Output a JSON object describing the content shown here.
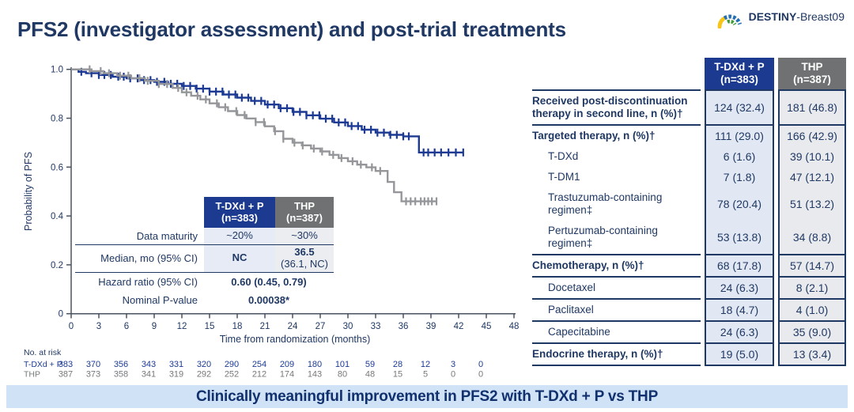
{
  "slide": {
    "title": "PFS2 (investigator assessment) and post-trial treatments",
    "logo": {
      "brand_bold": "DESTINY",
      "brand_rest": "-Breast09"
    },
    "banner": "Clinically meaningful improvement in PFS2 with T-DXd + P vs THP"
  },
  "colors": {
    "navy_text": "#1f3864",
    "curve_blue": "#1c3a94",
    "curve_gray": "#949699",
    "header_blue": "#1c3b90",
    "header_gray": "#6f7173",
    "banner_bg": "#cfe2f6",
    "axis": "#4a5360",
    "risk_gray": "#75787b"
  },
  "chart_data": {
    "type": "line",
    "subtype": "kaplan-meier-step",
    "title": "",
    "xlabel": "Time from randomization (months)",
    "ylabel": "Probability of PFS",
    "xlim": [
      0,
      48
    ],
    "ylim": [
      0,
      1.0
    ],
    "xticks": [
      0,
      3,
      6,
      9,
      12,
      15,
      18,
      21,
      24,
      27,
      30,
      33,
      36,
      39,
      42,
      45,
      48
    ],
    "yticks": [
      0,
      0.2,
      0.4,
      0.6,
      0.8,
      1.0
    ],
    "grid": false,
    "series": [
      {
        "name": "T-DXd + P",
        "color": "#1c3a94",
        "steps": [
          [
            0,
            1.0
          ],
          [
            0.8,
            0.99
          ],
          [
            1.6,
            0.984
          ],
          [
            3,
            0.977
          ],
          [
            4.5,
            0.97
          ],
          [
            6,
            0.963
          ],
          [
            7.5,
            0.956
          ],
          [
            9,
            0.949
          ],
          [
            10.5,
            0.941
          ],
          [
            12,
            0.932
          ],
          [
            13.5,
            0.921
          ],
          [
            15,
            0.909
          ],
          [
            16.5,
            0.897
          ],
          [
            18,
            0.884
          ],
          [
            19.5,
            0.871
          ],
          [
            21,
            0.856
          ],
          [
            22.5,
            0.841
          ],
          [
            24,
            0.826
          ],
          [
            25.5,
            0.812
          ],
          [
            27,
            0.798
          ],
          [
            28.5,
            0.783
          ],
          [
            30,
            0.768
          ],
          [
            31.5,
            0.753
          ],
          [
            33,
            0.741
          ],
          [
            34.5,
            0.732
          ],
          [
            36,
            0.726
          ],
          [
            37.7,
            0.66
          ],
          [
            42.5,
            0.66
          ]
        ],
        "censors": [
          1.1,
          2.2,
          3.0,
          3.6,
          4.3,
          5.1,
          5.7,
          6.4,
          7.2,
          7.9,
          8.6,
          9.3,
          10.1,
          10.8,
          11.5,
          12.2,
          12.9,
          13.6,
          14.3,
          15.0,
          15.7,
          16.4,
          17.1,
          17.8,
          18.5,
          19.2,
          19.9,
          20.6,
          21.3,
          22.0,
          22.7,
          23.4,
          24.1,
          24.8,
          25.5,
          26.2,
          26.9,
          27.6,
          28.3,
          29.0,
          29.7,
          30.4,
          31.1,
          31.8,
          32.5,
          33.2,
          33.9,
          34.6,
          35.3,
          36.0,
          36.6,
          38.2,
          38.7,
          39.4,
          40.1,
          40.9,
          41.7,
          42.5
        ]
      },
      {
        "name": "THP",
        "color": "#949699",
        "steps": [
          [
            0,
            1.0
          ],
          [
            2.2,
            0.993
          ],
          [
            3.5,
            0.984
          ],
          [
            5,
            0.974
          ],
          [
            6.5,
            0.964
          ],
          [
            8,
            0.953
          ],
          [
            9.5,
            0.94
          ],
          [
            11,
            0.924
          ],
          [
            12,
            0.906
          ],
          [
            13,
            0.892
          ],
          [
            14,
            0.877
          ],
          [
            15,
            0.861
          ],
          [
            16,
            0.845
          ],
          [
            17,
            0.829
          ],
          [
            18,
            0.813
          ],
          [
            19,
            0.799
          ],
          [
            20,
            0.784
          ],
          [
            21,
            0.767
          ],
          [
            22,
            0.747
          ],
          [
            23,
            0.716
          ],
          [
            24,
            0.7
          ],
          [
            25,
            0.689
          ],
          [
            26,
            0.676
          ],
          [
            27,
            0.664
          ],
          [
            28,
            0.65
          ],
          [
            29,
            0.637
          ],
          [
            30,
            0.624
          ],
          [
            31,
            0.61
          ],
          [
            32,
            0.599
          ],
          [
            33,
            0.584
          ],
          [
            34.3,
            0.539
          ],
          [
            35,
            0.497
          ],
          [
            35.8,
            0.46
          ],
          [
            39.6,
            0.46
          ]
        ],
        "censors": [
          2.0,
          3.2,
          4.1,
          5.3,
          6.2,
          7.4,
          8.3,
          9.5,
          10.4,
          11.6,
          12.5,
          13.7,
          14.6,
          15.8,
          16.7,
          17.9,
          18.8,
          20.0,
          20.9,
          22.1,
          23.0,
          24.2,
          25.1,
          26.3,
          27.2,
          28.4,
          29.3,
          30.5,
          31.4,
          32.6,
          33.5,
          36.3,
          36.8,
          37.3,
          37.9,
          38.3,
          38.7,
          39.1,
          39.6
        ]
      }
    ],
    "stats_table": {
      "col_headers": {
        "tdxd": {
          "line1": "T-DXd + P",
          "line2": "(n=383)"
        },
        "thp": {
          "line1": "THP",
          "line2": "(n=387)"
        }
      },
      "rows": {
        "maturity": {
          "label": "Data maturity",
          "tdxd": "~20%",
          "thp": "~30%"
        },
        "median": {
          "label": "Median, mo (95% CI)",
          "tdxd": "NC",
          "thp_main": "36.5",
          "thp_ci": "(36.1, NC)"
        },
        "hazard": {
          "label": "Hazard ratio (95% CI)",
          "value": "0.60 (0.45, 0.79)"
        },
        "pvalue": {
          "label": "Nominal P-value",
          "value": "0.00038*"
        }
      }
    },
    "at_risk": {
      "label": "No. at risk",
      "months": [
        0,
        3,
        6,
        9,
        12,
        15,
        18,
        21,
        24,
        27,
        30,
        33,
        36,
        39,
        42,
        45
      ],
      "rows": [
        {
          "name": "T-DXd + P",
          "color": "#1c3a94",
          "values": [
            383,
            370,
            356,
            343,
            331,
            320,
            290,
            254,
            209,
            180,
            101,
            59,
            28,
            12,
            3,
            0
          ]
        },
        {
          "name": "THP",
          "color": "#75787b",
          "values": [
            387,
            373,
            358,
            341,
            319,
            292,
            252,
            212,
            174,
            143,
            80,
            48,
            15,
            5,
            0,
            0
          ]
        }
      ]
    }
  },
  "treatment_table": {
    "col_headers": {
      "tdxd": {
        "line1": "T-DXd + P",
        "line2": "(n=383)"
      },
      "thp": {
        "line1": "THP",
        "line2": "(n=387)"
      }
    },
    "rows": [
      {
        "label": "Received post-discontinuation therapy in second line, n (%)†",
        "bold": true,
        "indent": false,
        "sep": true,
        "tdxd": "124 (32.4)",
        "thp": "181 (46.8)"
      },
      {
        "label": "Targeted therapy, n (%)†",
        "bold": true,
        "indent": false,
        "sep": true,
        "tdxd": "111 (29.0)",
        "thp": "166 (42.9)"
      },
      {
        "label": "T-DXd",
        "bold": false,
        "indent": true,
        "sep": false,
        "tdxd": "6 (1.6)",
        "thp": "39 (10.1)"
      },
      {
        "label": "T-DM1",
        "bold": false,
        "indent": true,
        "sep": false,
        "tdxd": "7 (1.8)",
        "thp": "47 (12.1)"
      },
      {
        "label": "Trastuzumab-containing regimen‡",
        "bold": false,
        "indent": true,
        "sep": false,
        "tdxd": "78 (20.4)",
        "thp": "51 (13.2)"
      },
      {
        "label": "Pertuzumab-containing regimen‡",
        "bold": false,
        "indent": true,
        "sep": false,
        "tdxd": "53 (13.8)",
        "thp": "34 (8.8)"
      },
      {
        "label": "Chemotherapy, n (%)†",
        "bold": true,
        "indent": false,
        "sep": true,
        "tdxd": "68 (17.8)",
        "thp": "57 (14.7)"
      },
      {
        "label": "Docetaxel",
        "bold": false,
        "indent": true,
        "sep": true,
        "tdxd": "24 (6.3)",
        "thp": "8 (2.1)"
      },
      {
        "label": "Paclitaxel",
        "bold": false,
        "indent": true,
        "sep": true,
        "tdxd": "18 (4.7)",
        "thp": "4 (1.0)"
      },
      {
        "label": "Capecitabine",
        "bold": false,
        "indent": true,
        "sep": true,
        "tdxd": "24 (6.3)",
        "thp": "35 (9.0)"
      },
      {
        "label": "Endocrine therapy, n (%)†",
        "bold": true,
        "indent": false,
        "sep": true,
        "tdxd": "19 (5.0)",
        "thp": "13 (3.4)"
      }
    ]
  }
}
